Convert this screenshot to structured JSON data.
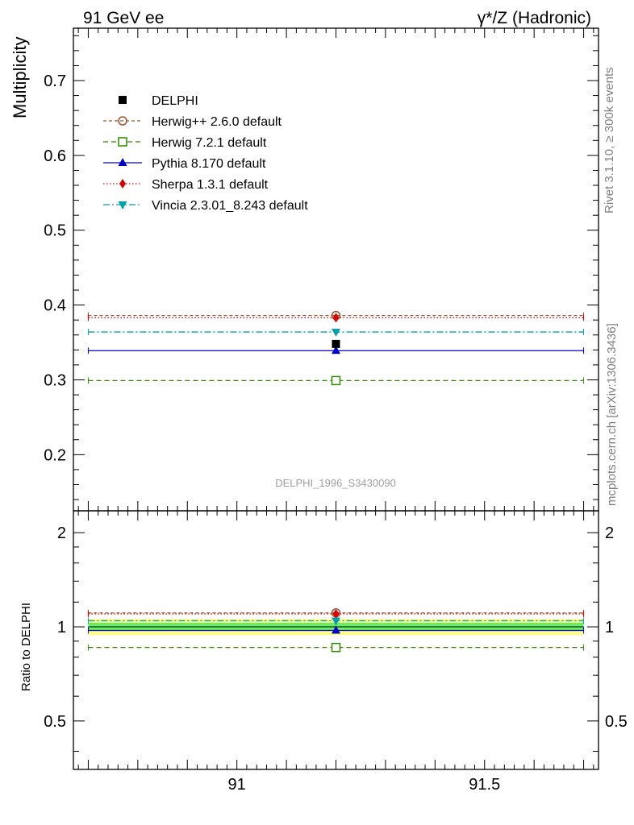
{
  "header": {
    "left": "91 GeV ee",
    "right": "γ*/Z (Hadronic)"
  },
  "side_labels": {
    "rivet": "Rivet 3.1.10, ≥ 300k events",
    "mcplots": "mcplots.cern.ch [arXiv:1306.3436]"
  },
  "chart_data": [
    {
      "type": "scatter",
      "title": "",
      "analysis_label": "DELPHI_1996_S3430090",
      "ylabel": "Multiplicity",
      "xlabel": "",
      "xlim": [
        90.67,
        91.73
      ],
      "ylim": [
        0.125,
        0.77
      ],
      "y_ticks": [
        "0.2",
        "0.3",
        "0.4",
        "0.5",
        "0.6",
        "0.7"
      ],
      "x_ticks": [],
      "bin": [
        90.7,
        91.7
      ],
      "x_center": 91.2,
      "data": {
        "name": "DELPHI",
        "y": 0.348,
        "color": "#000000",
        "marker": "square"
      },
      "series": [
        {
          "name": "Herwig++ 2.6.0 default",
          "y": 0.386,
          "color": "#a0522d",
          "dash": "dashed-short",
          "marker": "circle-open"
        },
        {
          "name": "Herwig 7.2.1 default",
          "y": 0.299,
          "color": "#2e8b00",
          "dash": "dashed",
          "marker": "square-open"
        },
        {
          "name": "Pythia 8.170 default",
          "y": 0.339,
          "color": "#0000cc",
          "dash": "solid",
          "marker": "triangle-up"
        },
        {
          "name": "Sherpa 1.3.1 default",
          "y": 0.383,
          "color": "#dd0000",
          "dash": "dotted",
          "marker": "diamond"
        },
        {
          "name": "Vincia 2.3.01_8.243 default",
          "y": 0.364,
          "color": "#00a0b0",
          "dash": "dashdot",
          "marker": "triangle-down"
        }
      ],
      "legend_position": "top-left"
    },
    {
      "type": "scatter",
      "title": "",
      "ylabel": "Ratio to DELPHI",
      "xlabel": "",
      "xlim": [
        90.67,
        91.73
      ],
      "ylim": [
        0.35,
        2.35
      ],
      "y_scale": "log",
      "y_ticks": [
        "0.5",
        "1",
        "2"
      ],
      "x_ticks": [
        "91",
        "91.5"
      ],
      "bin": [
        90.7,
        91.7
      ],
      "x_center": 91.2,
      "data_band": {
        "inner": [
          0.97,
          1.03
        ],
        "outer": [
          0.94,
          1.06
        ],
        "inner_color": "#66ee66",
        "outer_color": "#ffff88"
      },
      "series": [
        {
          "name": "Herwig++ 2.6.0 default",
          "y": 1.108,
          "color": "#a0522d",
          "dash": "dashed-short",
          "marker": "circle-open"
        },
        {
          "name": "Herwig 7.2.1 default",
          "y": 0.859,
          "color": "#2e8b00",
          "dash": "dashed",
          "marker": "square-open"
        },
        {
          "name": "Pythia 8.170 default",
          "y": 0.974,
          "color": "#0000cc",
          "dash": "solid",
          "marker": "triangle-up"
        },
        {
          "name": "Sherpa 1.3.1 default",
          "y": 1.1,
          "color": "#dd0000",
          "dash": "dotted",
          "marker": "diamond"
        },
        {
          "name": "Vincia 2.3.01_8.243 default",
          "y": 1.046,
          "color": "#00a0b0",
          "dash": "dashdot",
          "marker": "triangle-down"
        }
      ]
    }
  ]
}
